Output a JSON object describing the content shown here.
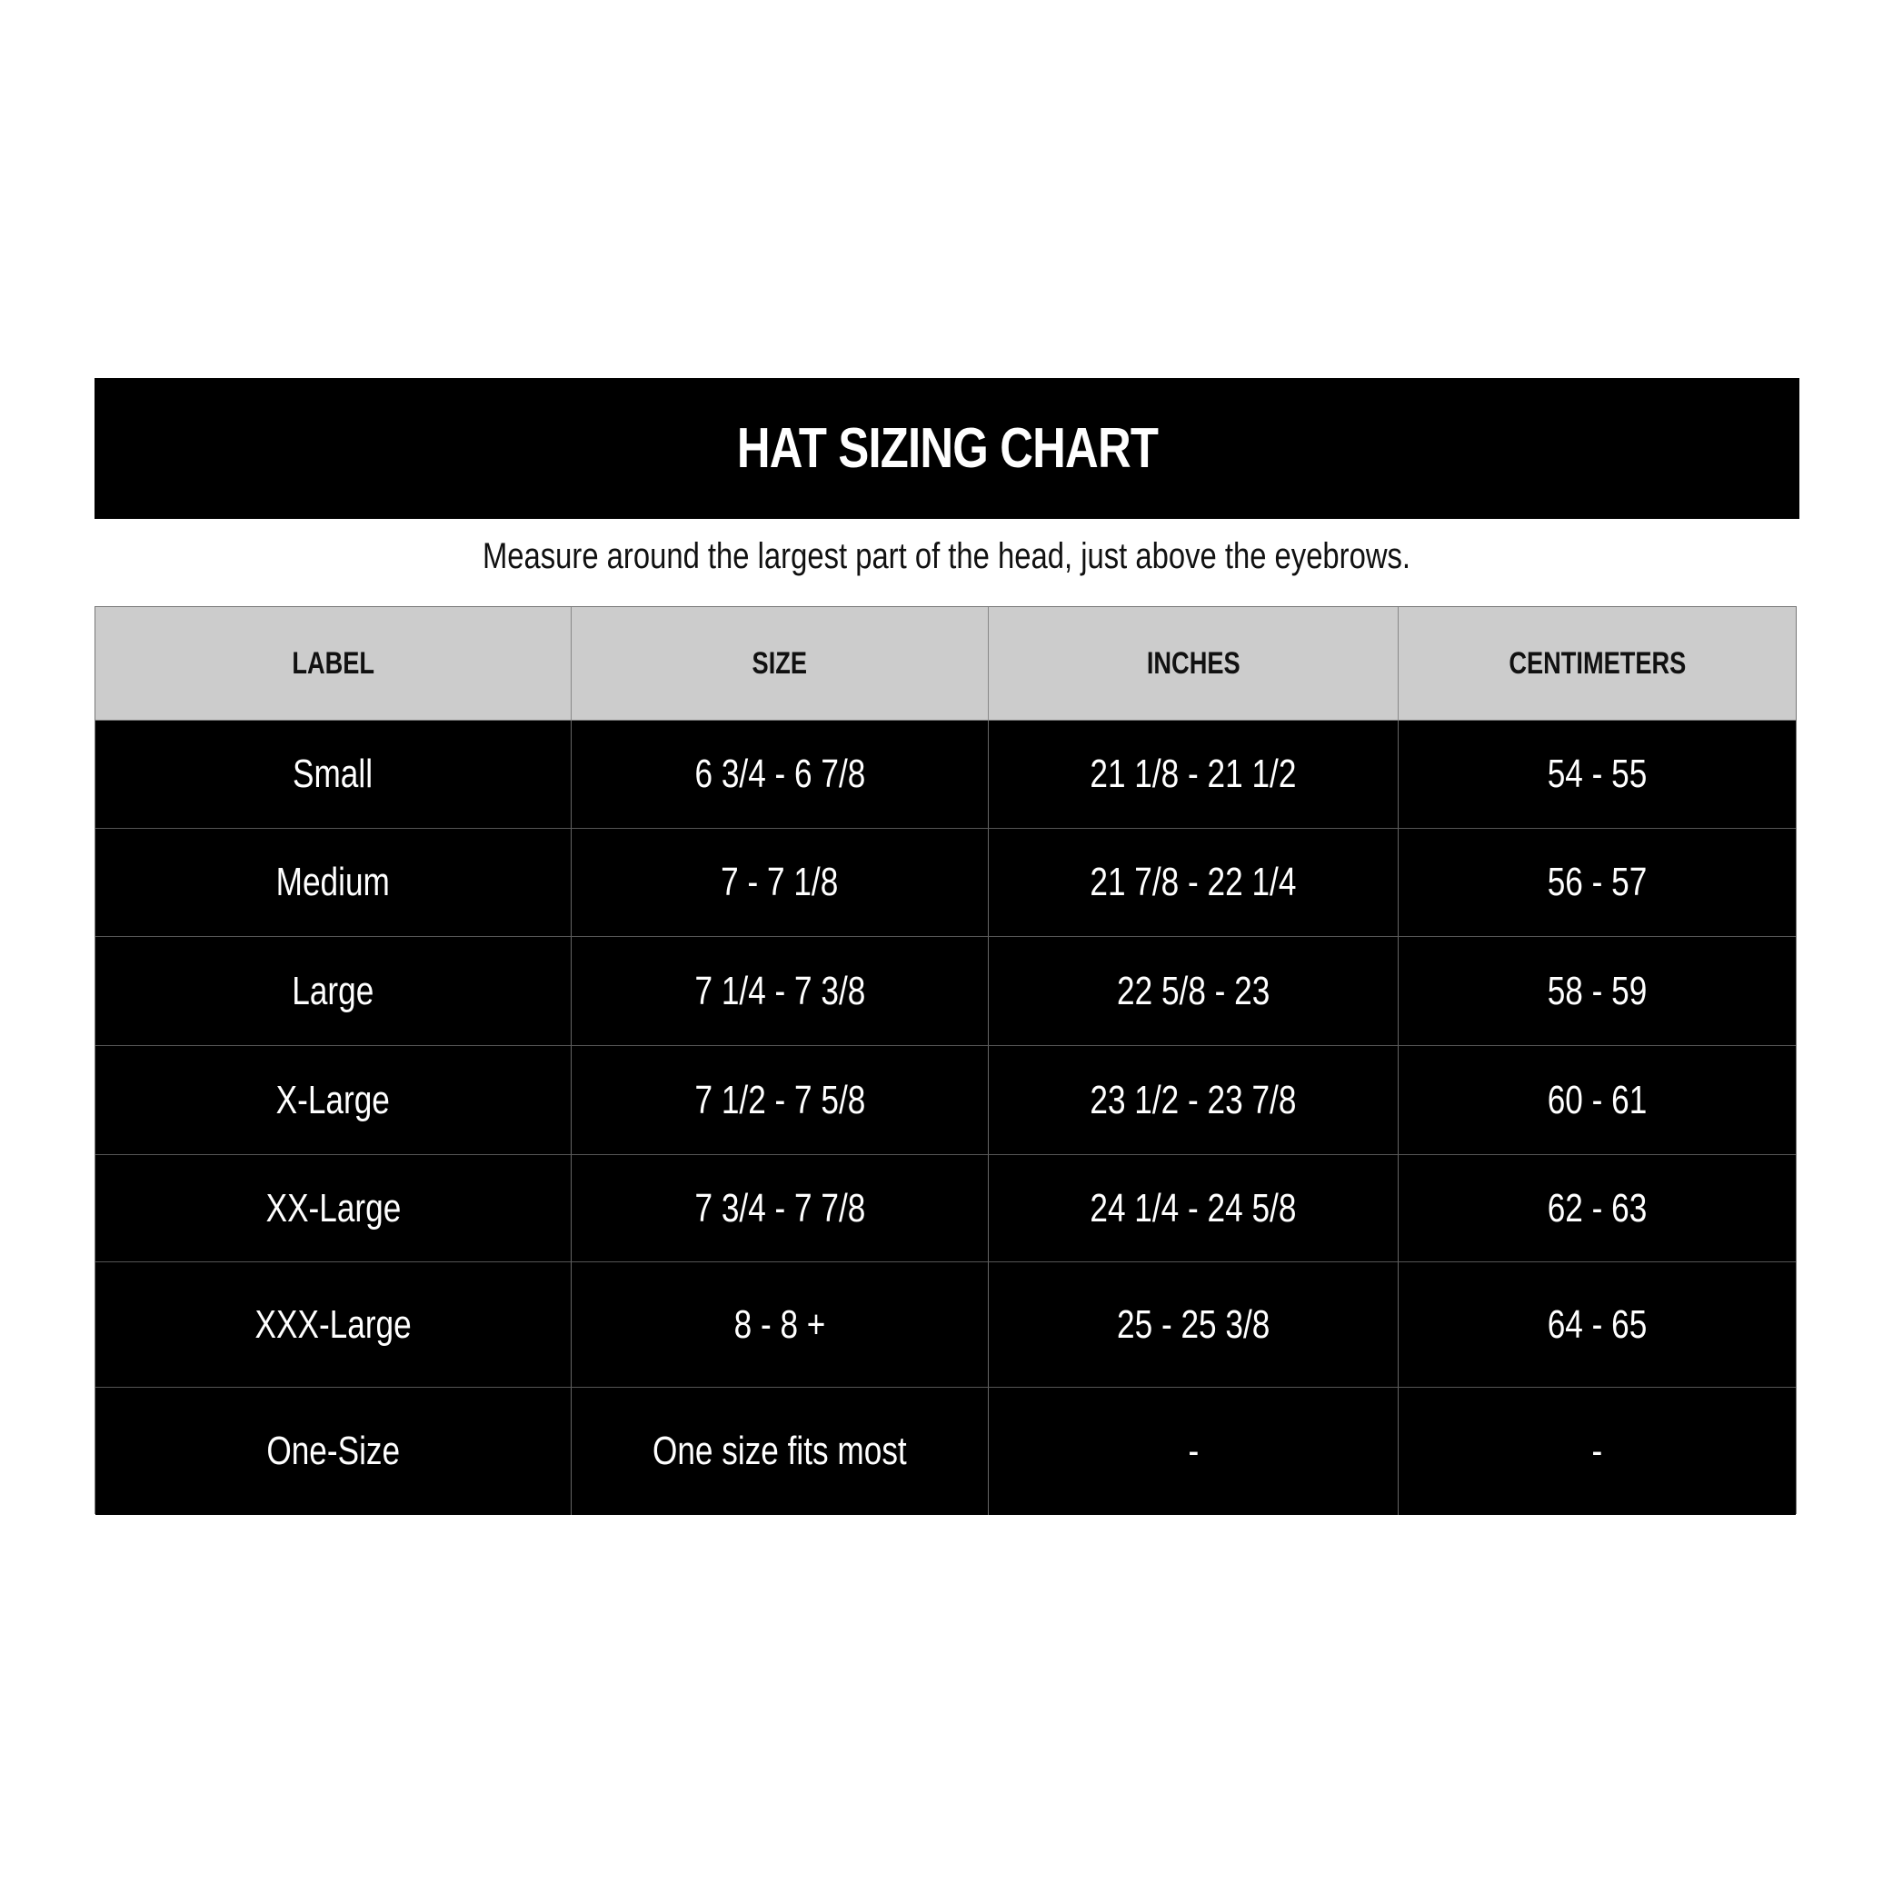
{
  "title": "HAT SIZING CHART",
  "subtitle": "Measure around the largest part of the head, just above the eyebrows.",
  "colors": {
    "title_bg": "#000000",
    "header_bg": "#cccccc",
    "row_bg": "#000000",
    "row_text": "#ffffff"
  },
  "table": {
    "headers": [
      "LABEL",
      "SIZE",
      "INCHES",
      "CENTIMETERS"
    ],
    "rows": [
      [
        "Small",
        "6 3/4 - 6 7/8",
        "21 1/8 - 21 1/2",
        "54 - 55"
      ],
      [
        "Medium",
        "7 - 7 1/8",
        "21 7/8 - 22 1/4",
        "56 - 57"
      ],
      [
        "Large",
        "7 1/4 - 7 3/8",
        "22 5/8 - 23",
        "58 - 59"
      ],
      [
        "X-Large",
        "7 1/2 - 7 5/8",
        "23 1/2 - 23 7/8",
        "60 - 61"
      ],
      [
        "XX-Large",
        "7 3/4 - 7 7/8",
        "24 1/4 - 24 5/8",
        "62 - 63"
      ],
      [
        "XXX-Large",
        "8 - 8 +",
        "25 - 25 3/8",
        "64 - 65"
      ],
      [
        "One-Size",
        "One size fits most",
        "-",
        "-"
      ]
    ]
  }
}
